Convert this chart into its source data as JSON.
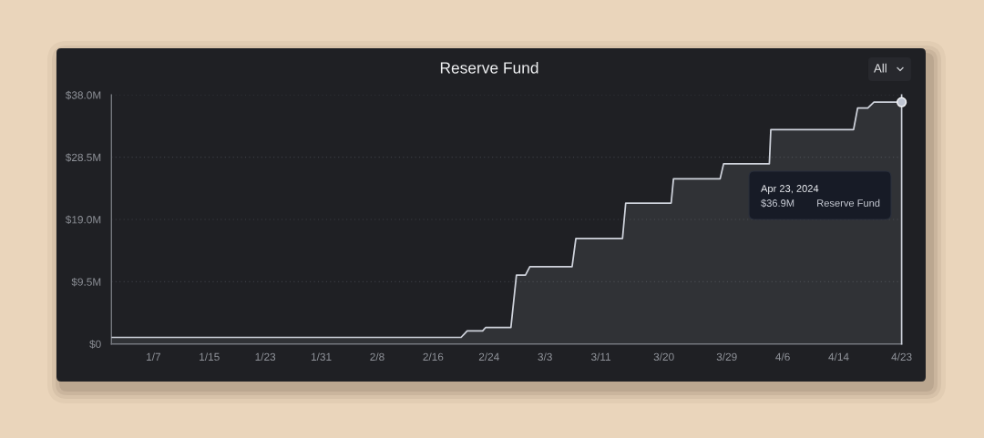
{
  "chart_data": {
    "type": "area",
    "title": "Reserve Fund",
    "x": [
      "2024-01-01T00:00",
      "2024-02-20T00:00",
      "2024-02-20T21:00",
      "2024-02-23T02:00",
      "2024-02-23T12:00",
      "2024-02-27T03:00",
      "2024-02-27T22:00",
      "2024-02-29T05:00",
      "2024-02-29T20:00",
      "2024-03-06T21:00",
      "2024-03-07T10:00",
      "2024-03-14T02:00",
      "2024-03-14T13:00",
      "2024-03-21T01:00",
      "2024-03-21T09:00",
      "2024-03-28T01:00",
      "2024-03-28T13:00",
      "2024-04-04T02:00",
      "2024-04-04T07:00",
      "2024-04-16T03:00",
      "2024-04-16T17:00",
      "2024-04-18T04:00",
      "2024-04-19T01:00",
      "2024-04-23T00:00"
    ],
    "series": [
      {
        "color": "#cfd3dc",
        "values": [
          1.0,
          1.0,
          2.0,
          2.0,
          2.5,
          2.5,
          10.5,
          10.5,
          11.8,
          11.8,
          16.1,
          16.1,
          21.5,
          21.5,
          25.2,
          25.2,
          27.5,
          27.5,
          32.7,
          32.7,
          36.0,
          36.0,
          36.9,
          36.9
        ]
      }
    ],
    "xlim": [
      "2024-01-01",
      "2024-04-23"
    ],
    "ylim": [
      0,
      38
    ],
    "xticks": [
      {
        "value": "2024-01-07",
        "label": "1/7"
      },
      {
        "value": "2024-01-15",
        "label": "1/15"
      },
      {
        "value": "2024-01-23",
        "label": "1/23"
      },
      {
        "value": "2024-01-31",
        "label": "1/31"
      },
      {
        "value": "2024-02-08",
        "label": "2/8"
      },
      {
        "value": "2024-02-16",
        "label": "2/16"
      },
      {
        "value": "2024-02-24",
        "label": "2/24"
      },
      {
        "value": "2024-03-03",
        "label": "3/3"
      },
      {
        "value": "2024-03-11",
        "label": "3/11"
      },
      {
        "value": "2024-03-20",
        "label": "3/20"
      },
      {
        "value": "2024-03-29",
        "label": "3/29"
      },
      {
        "value": "2024-04-06",
        "label": "4/6"
      },
      {
        "value": "2024-04-14",
        "label": "4/14"
      },
      {
        "value": "2024-04-23",
        "label": "4/23"
      }
    ],
    "yticks": [
      {
        "value": 0,
        "label": "$0"
      },
      {
        "value": 9.5,
        "label": "$9.5M"
      },
      {
        "value": 19,
        "label": "$19.0M"
      },
      {
        "value": 28.5,
        "label": "$28.5M"
      },
      {
        "value": 38,
        "label": "$38.0M"
      }
    ],
    "grid": "y",
    "ref_lines": [
      {
        "axis": "x",
        "value": "2024-04-23",
        "color": "#cfd3dc"
      }
    ],
    "annotations": [
      "Apr 23, 2024",
      "$36.9M",
      "Reserve Fund",
      "All"
    ]
  }
}
